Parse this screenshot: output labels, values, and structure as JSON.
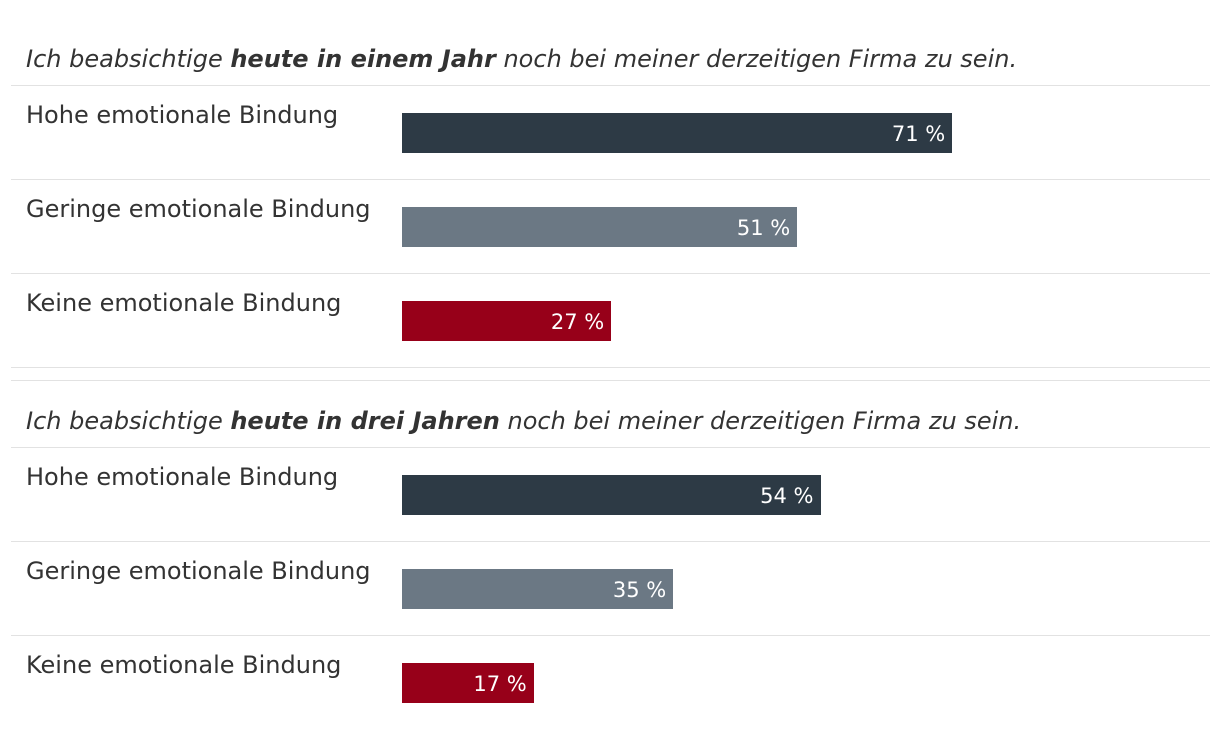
{
  "colors": {
    "high": "#2d3a45",
    "low": "#6b7884",
    "none": "#970019"
  },
  "chart_data": [
    {
      "type": "bar",
      "orientation": "horizontal",
      "title_prefix": "Ich beabsichtige ",
      "title_emphasis": "heute in einem Jahr",
      "title_suffix": " noch bei meiner derzeitigen Firma zu sein.",
      "categories": [
        "Hohe emotionale Bindung",
        "Geringe emotionale Bindung",
        "Keine emotionale Bindung"
      ],
      "values": [
        71,
        51,
        27
      ],
      "value_labels": [
        "71 %",
        "51 %",
        "27 %"
      ],
      "unit": "%",
      "xlim": [
        0,
        100
      ]
    },
    {
      "type": "bar",
      "orientation": "horizontal",
      "title_prefix": "Ich beabsichtige ",
      "title_emphasis": "heute in drei Jahren",
      "title_suffix": " noch bei meiner derzeitigen Firma zu sein.",
      "categories": [
        "Hohe emotionale Bindung",
        "Geringe emotionale Bindung",
        "Keine emotionale Bindung"
      ],
      "values": [
        54,
        35,
        17
      ],
      "value_labels": [
        "54 %",
        "35 %",
        "17 %"
      ],
      "unit": "%",
      "xlim": [
        0,
        100
      ]
    }
  ]
}
